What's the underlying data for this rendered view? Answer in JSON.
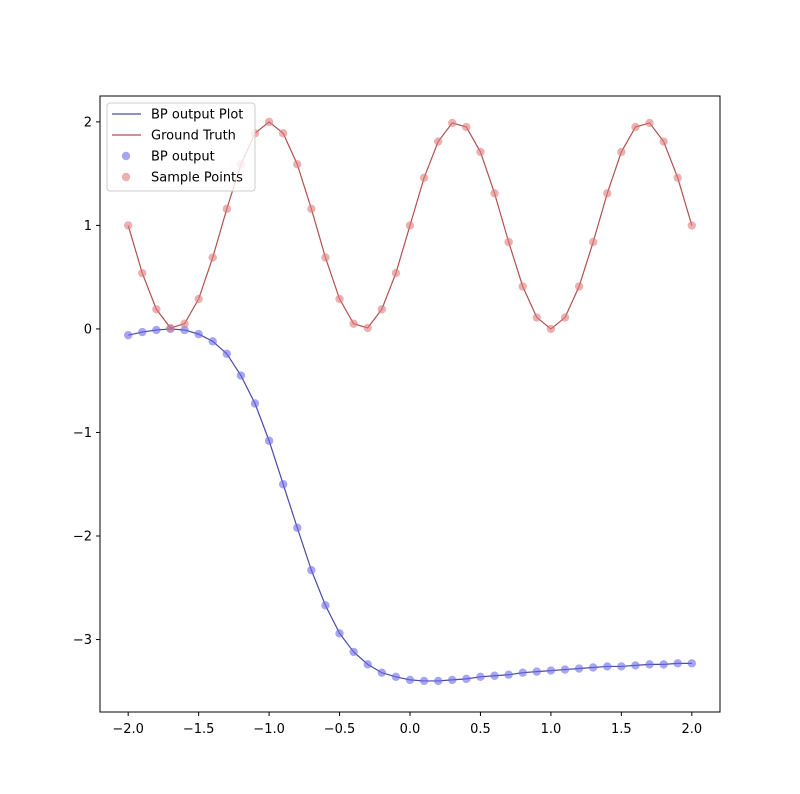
{
  "chart_data": {
    "type": "line",
    "title": "",
    "xlabel": "",
    "ylabel": "",
    "xlim": [
      -2.2,
      2.2
    ],
    "ylim": [
      -3.7,
      2.25
    ],
    "grid": false,
    "legend_placement": "top-left",
    "x_ticks": [
      -2.0,
      -1.5,
      -1.0,
      -0.5,
      0.0,
      0.5,
      1.0,
      1.5,
      2.0
    ],
    "x_tick_labels": [
      "−2.0",
      "−1.5",
      "−1.0",
      "−0.5",
      "0.0",
      "0.5",
      "1.0",
      "1.5",
      "2.0"
    ],
    "y_ticks": [
      -3,
      -2,
      -1,
      0,
      1,
      2
    ],
    "y_tick_labels": [
      "−3",
      "−2",
      "−1",
      "0",
      "1",
      "2"
    ],
    "x": [
      -2.0,
      -1.9,
      -1.8,
      -1.7,
      -1.6,
      -1.5,
      -1.4,
      -1.3,
      -1.2,
      -1.1,
      -1.0,
      -0.9,
      -0.8,
      -0.7,
      -0.6,
      -0.5,
      -0.4,
      -0.3,
      -0.2,
      -0.1,
      0.0,
      0.1,
      0.2,
      0.3,
      0.4,
      0.5,
      0.6,
      0.7,
      0.8,
      0.9,
      1.0,
      1.1,
      1.2,
      1.3,
      1.4,
      1.5,
      1.6,
      1.7,
      1.8,
      1.9,
      2.0
    ],
    "series": [
      {
        "name": "BP output Plot",
        "kind": "line",
        "color": "#4a4aa6",
        "values": [
          -0.06,
          -0.03,
          -0.01,
          0.0,
          -0.01,
          -0.05,
          -0.12,
          -0.24,
          -0.45,
          -0.72,
          -1.08,
          -1.5,
          -1.92,
          -2.33,
          -2.67,
          -2.94,
          -3.12,
          -3.24,
          -3.32,
          -3.36,
          -3.39,
          -3.4,
          -3.4,
          -3.39,
          -3.38,
          -3.36,
          -3.35,
          -3.34,
          -3.32,
          -3.31,
          -3.3,
          -3.29,
          -3.28,
          -3.27,
          -3.26,
          -3.26,
          -3.25,
          -3.24,
          -3.24,
          -3.23,
          -3.23
        ]
      },
      {
        "name": "Ground Truth",
        "kind": "line",
        "color": "#b05050",
        "values": [
          1.0,
          0.54,
          0.19,
          0.01,
          0.05,
          0.29,
          0.69,
          1.16,
          1.59,
          1.89,
          2.0,
          1.89,
          1.59,
          1.16,
          0.69,
          0.29,
          0.05,
          0.01,
          0.19,
          0.54,
          1.0,
          1.46,
          1.81,
          1.99,
          1.95,
          1.71,
          1.31,
          0.84,
          0.41,
          0.11,
          0.0,
          0.11,
          0.41,
          0.84,
          1.31,
          1.71,
          1.95,
          1.99,
          1.81,
          1.46,
          1.0
        ]
      },
      {
        "name": "BP output",
        "kind": "scatter",
        "color": "#6b6bea",
        "values_from": "BP output Plot"
      },
      {
        "name": "Sample Points",
        "kind": "scatter",
        "color": "#e07b7b",
        "values_from": "Ground Truth"
      }
    ]
  }
}
